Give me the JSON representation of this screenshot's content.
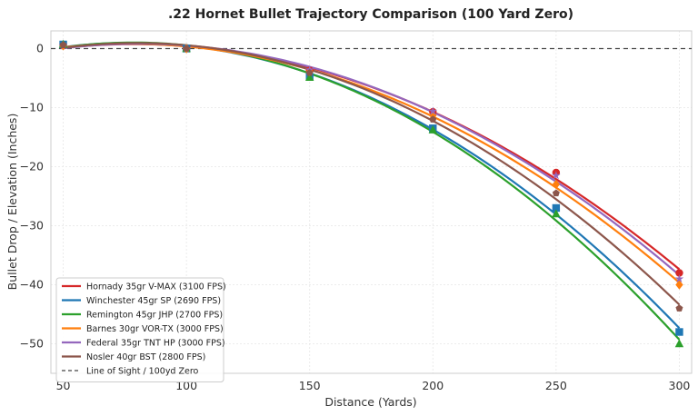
{
  "chart_data": {
    "type": "line",
    "title": ".22 Hornet Bullet Trajectory Comparison (100 Yard Zero)",
    "xlabel": "Distance (Yards)",
    "ylabel": "Bullet Drop / Elevation (Inches)",
    "xlim": [
      45,
      305
    ],
    "ylim": [
      -55,
      3
    ],
    "x_ticks": [
      50,
      100,
      150,
      200,
      250,
      300
    ],
    "y_ticks": [
      0,
      -10,
      -20,
      -30,
      -40,
      -50
    ],
    "grid": true,
    "legend_position": "lower-left",
    "x": [
      50,
      100,
      150,
      200,
      250,
      300
    ],
    "series": [
      {
        "name": "Hornady 35gr V-MAX (3100 FPS)",
        "color": "#d62728",
        "marker": "circle",
        "values": [
          0.5,
          0,
          -3.7,
          -10.7,
          -21,
          -38
        ]
      },
      {
        "name": "Winchester 45gr SP (2690 FPS)",
        "color": "#1f77b4",
        "marker": "square",
        "values": [
          0.7,
          0,
          -4.8,
          -13.5,
          -27,
          -48
        ]
      },
      {
        "name": "Remington 45gr JHP (2700 FPS)",
        "color": "#2ca02c",
        "marker": "triangle",
        "values": [
          0.7,
          0,
          -4.9,
          -13.8,
          -28,
          -50
        ]
      },
      {
        "name": "Barnes 30gr VOR-TX (3000 FPS)",
        "color": "#ff7f0e",
        "marker": "diamond",
        "values": [
          0.5,
          0,
          -3.9,
          -11.3,
          -23,
          -40
        ]
      },
      {
        "name": "Federal 35gr TNT HP (3000 FPS)",
        "color": "#9467bd",
        "marker": "star",
        "values": [
          0.5,
          0,
          -3.6,
          -10.6,
          -21.5,
          -39
        ]
      },
      {
        "name": "Nosler 40gr BST (2800 FPS)",
        "color": "#8c564b",
        "marker": "pentagon",
        "values": [
          0.6,
          0,
          -4.1,
          -12.0,
          -24.5,
          -44
        ]
      }
    ],
    "reference_line": {
      "name": "Line of Sight / 100yd Zero",
      "y": 0,
      "color": "#444444",
      "style": "dashed"
    }
  }
}
